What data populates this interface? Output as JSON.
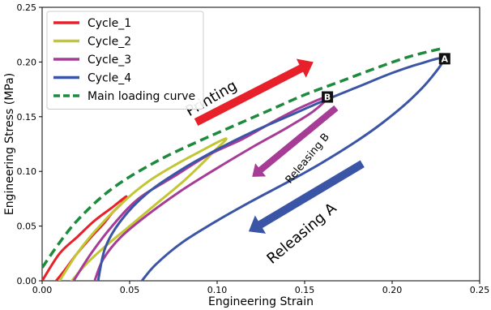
{
  "chart_data": {
    "type": "line",
    "title": "",
    "xlabel": "Engineering Strain",
    "ylabel": "Engineering Stress (MPa)",
    "xlim": [
      0.0,
      0.25
    ],
    "ylim": [
      0.0,
      0.25
    ],
    "xticks": [
      0.0,
      0.05,
      0.1,
      0.15,
      0.2,
      0.25
    ],
    "yticks": [
      0.0,
      0.05,
      0.1,
      0.15,
      0.2,
      0.25
    ],
    "xtick_labels": [
      "0.00",
      "0.05",
      "0.10",
      "0.15",
      "0.20",
      "0.25"
    ],
    "ytick_labels": [
      "0.00",
      "0.05",
      "0.10",
      "0.15",
      "0.20",
      "0.25"
    ],
    "grid": false,
    "legend_position": "top-left",
    "series": [
      {
        "name": "Cycle_1",
        "color": "#e8202a",
        "style": "solid",
        "loops": [
          [
            [
              0.0,
              0.0
            ],
            [
              0.01,
              0.025
            ],
            [
              0.02,
              0.04
            ],
            [
              0.03,
              0.055
            ],
            [
              0.04,
              0.067
            ],
            [
              0.048,
              0.077
            ],
            [
              0.045,
              0.07
            ],
            [
              0.04,
              0.062
            ],
            [
              0.035,
              0.052
            ],
            [
              0.028,
              0.04
            ],
            [
              0.02,
              0.025
            ],
            [
              0.013,
              0.01
            ],
            [
              0.008,
              0.0
            ]
          ]
        ]
      },
      {
        "name": "Cycle_2",
        "color": "#c2c632",
        "style": "solid",
        "loops": [
          [
            [
              0.01,
              0.0
            ],
            [
              0.02,
              0.025
            ],
            [
              0.03,
              0.045
            ],
            [
              0.045,
              0.07
            ],
            [
              0.06,
              0.09
            ],
            [
              0.075,
              0.105
            ],
            [
              0.09,
              0.118
            ],
            [
              0.105,
              0.13
            ],
            [
              0.098,
              0.118
            ],
            [
              0.09,
              0.105
            ],
            [
              0.08,
              0.09
            ],
            [
              0.065,
              0.07
            ],
            [
              0.05,
              0.05
            ],
            [
              0.035,
              0.03
            ],
            [
              0.025,
              0.015
            ],
            [
              0.017,
              0.0
            ]
          ]
        ]
      },
      {
        "name": "Cycle_3",
        "color": "#a63c96",
        "style": "solid",
        "loops": [
          [
            [
              0.018,
              0.0
            ],
            [
              0.028,
              0.025
            ],
            [
              0.04,
              0.05
            ],
            [
              0.055,
              0.075
            ],
            [
              0.075,
              0.095
            ],
            [
              0.095,
              0.115
            ],
            [
              0.115,
              0.13
            ],
            [
              0.135,
              0.148
            ],
            [
              0.15,
              0.16
            ],
            [
              0.163,
              0.168
            ],
            [
              0.155,
              0.155
            ],
            [
              0.14,
              0.14
            ],
            [
              0.12,
              0.122
            ],
            [
              0.1,
              0.103
            ],
            [
              0.08,
              0.083
            ],
            [
              0.06,
              0.06
            ],
            [
              0.045,
              0.04
            ],
            [
              0.035,
              0.02
            ],
            [
              0.03,
              0.0
            ]
          ]
        ]
      },
      {
        "name": "Cycle_4",
        "color": "#3b55a6",
        "style": "solid",
        "loops": [
          [
            [
              0.032,
              0.0
            ],
            [
              0.036,
              0.03
            ],
            [
              0.045,
              0.055
            ],
            [
              0.06,
              0.08
            ],
            [
              0.08,
              0.102
            ],
            [
              0.1,
              0.12
            ],
            [
              0.12,
              0.136
            ],
            [
              0.14,
              0.15
            ],
            [
              0.16,
              0.164
            ],
            [
              0.18,
              0.177
            ],
            [
              0.2,
              0.19
            ],
            [
              0.215,
              0.198
            ],
            [
              0.229,
              0.203
            ],
            [
              0.222,
              0.185
            ],
            [
              0.21,
              0.165
            ],
            [
              0.195,
              0.145
            ],
            [
              0.18,
              0.128
            ],
            [
              0.16,
              0.108
            ],
            [
              0.14,
              0.09
            ],
            [
              0.12,
              0.073
            ],
            [
              0.1,
              0.055
            ],
            [
              0.08,
              0.035
            ],
            [
              0.065,
              0.015
            ],
            [
              0.057,
              0.0
            ]
          ]
        ]
      },
      {
        "name": "Main loading curve",
        "color": "#1e8a3e",
        "style": "dashed",
        "points": [
          [
            0.0,
            0.012
          ],
          [
            0.01,
            0.035
          ],
          [
            0.02,
            0.055
          ],
          [
            0.035,
            0.078
          ],
          [
            0.05,
            0.095
          ],
          [
            0.07,
            0.113
          ],
          [
            0.09,
            0.128
          ],
          [
            0.11,
            0.142
          ],
          [
            0.13,
            0.156
          ],
          [
            0.15,
            0.17
          ],
          [
            0.17,
            0.182
          ],
          [
            0.19,
            0.194
          ],
          [
            0.21,
            0.205
          ],
          [
            0.23,
            0.213
          ]
        ]
      }
    ],
    "annotations": [
      {
        "text": "Printing",
        "arrow_color": "#e8202a",
        "from": [
          0.088,
          0.145
        ],
        "to": [
          0.155,
          0.2
        ],
        "text_at": [
          0.098,
          0.163
        ],
        "size": 18,
        "angle": -30
      },
      {
        "text": "Releasing B",
        "arrow_color": "#a63c96",
        "from": [
          0.168,
          0.158
        ],
        "to": [
          0.12,
          0.095
        ],
        "text_at": [
          0.153,
          0.11
        ],
        "size": 13,
        "angle": -50
      },
      {
        "text": "Releasing A",
        "arrow_color": "#3b55a6",
        "from": [
          0.183,
          0.107
        ],
        "to": [
          0.118,
          0.045
        ],
        "text_at": [
          0.15,
          0.04
        ],
        "size": 18,
        "angle": -40
      }
    ],
    "markers": [
      {
        "label": "A",
        "at": [
          0.23,
          0.203
        ]
      },
      {
        "label": "B",
        "at": [
          0.163,
          0.168
        ]
      }
    ]
  }
}
